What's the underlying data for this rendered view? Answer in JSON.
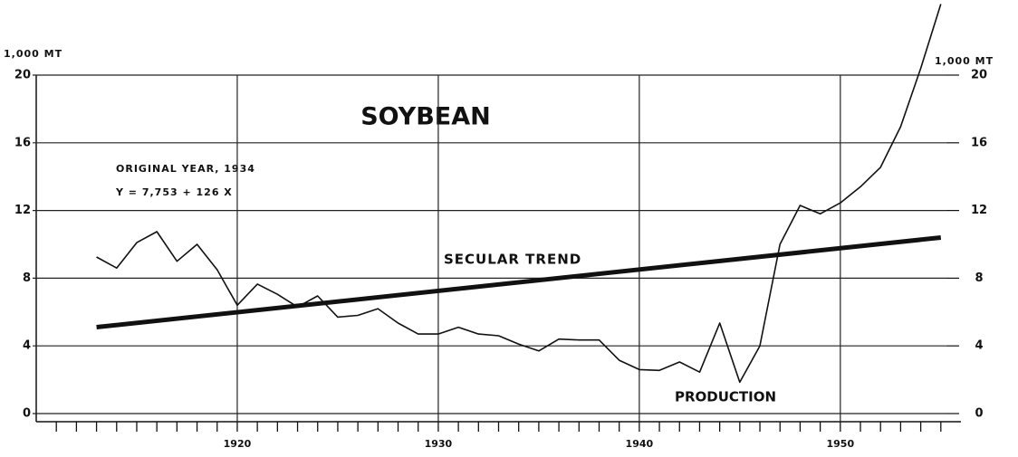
{
  "chart_data": {
    "type": "line",
    "title": "SOYBEAN",
    "y_label": "1,000 MT",
    "y2_label": "1,000 MT",
    "annotations": [
      "ORIGINAL YEAR, 1934",
      "Y = 7,753 + 126 X",
      "SECULAR TREND",
      "PRODUCTION"
    ],
    "xlim": [
      1910,
      1956
    ],
    "xticks": [
      1920,
      1930,
      1940,
      1950
    ],
    "xminorticks": [
      1911,
      1912,
      1913,
      1914,
      1915,
      1916,
      1917,
      1918,
      1919,
      1920,
      1921,
      1922,
      1923,
      1924,
      1925,
      1926,
      1927,
      1928,
      1929,
      1930,
      1931,
      1932,
      1933,
      1934,
      1935,
      1936,
      1937,
      1938,
      1939,
      1940,
      1941,
      1942,
      1943,
      1944,
      1945,
      1946,
      1947,
      1948,
      1949,
      1950,
      1951,
      1952,
      1953,
      1954,
      1955
    ],
    "ylim": [
      0,
      20
    ],
    "yticks": [
      0,
      4,
      8,
      12,
      16,
      20
    ],
    "y2lim": [
      0,
      20
    ],
    "y2ticks": [
      0,
      4,
      8,
      12,
      16,
      20
    ],
    "grid": true,
    "series": [
      {
        "name": "PRODUCTION",
        "color": "#111111",
        "width": 1.6,
        "x": [
          1913,
          1914,
          1915,
          1916,
          1917,
          1918,
          1919,
          1920,
          1921,
          1922,
          1923,
          1924,
          1925,
          1926,
          1927,
          1928,
          1929,
          1930,
          1931,
          1932,
          1933,
          1934,
          1935,
          1936,
          1937,
          1938,
          1939,
          1940,
          1941,
          1942,
          1943,
          1944,
          1945,
          1946,
          1947,
          1948,
          1949,
          1950,
          1951,
          1952,
          1953,
          1954,
          1955
        ],
        "values": [
          9.25,
          8.6,
          10.1,
          10.75,
          9.0,
          10.0,
          8.5,
          6.4,
          7.65,
          7.05,
          6.3,
          6.95,
          5.7,
          5.8,
          6.2,
          5.35,
          4.7,
          4.7,
          5.1,
          4.7,
          4.6,
          4.1,
          3.7,
          4.4,
          4.35,
          4.35,
          3.15,
          2.6,
          2.55,
          3.05,
          2.45,
          5.35,
          1.85,
          4.0,
          10.0,
          12.3,
          11.8,
          12.45,
          13.4,
          14.55,
          16.95,
          20.4,
          24.2
        ]
      },
      {
        "name": "SECULAR TREND",
        "color": "#111111",
        "width": 5,
        "x": [
          1913,
          1955
        ],
        "values": [
          5.107,
          10.399
        ]
      }
    ]
  }
}
